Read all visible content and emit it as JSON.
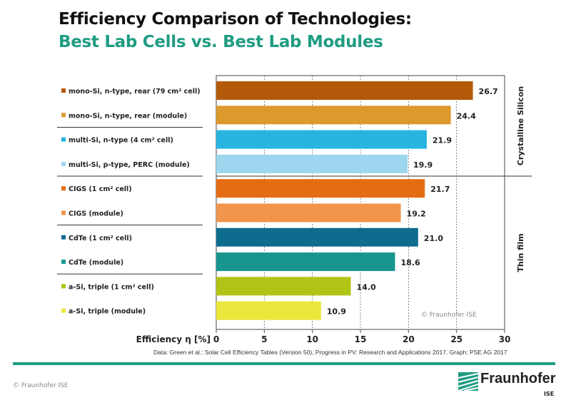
{
  "title": {
    "line1": "Efficiency Comparison of Technologies:",
    "line2": "Best Lab Cells vs. Best Lab Modules"
  },
  "chart_data": {
    "type": "bar",
    "orientation": "horizontal",
    "categories": [
      "mono-Si, n-type, rear (79 cm² cell)",
      "mono-Si, n-type, rear (module)",
      "multi-Si, n-type (4 cm² cell)",
      "multi-Si, p-type, PERC (module)",
      "CIGS (1 cm² cell)",
      "CIGS (module)",
      "CdTe (1 cm² cell)",
      "CdTe (module)",
      "a-Si, triple (1 cm² cell)",
      "a-Si, triple (module)"
    ],
    "values": [
      26.7,
      24.4,
      21.9,
      19.9,
      21.7,
      19.2,
      21.0,
      18.6,
      14.0,
      10.9
    ],
    "labels": [
      "26.7",
      "24.4",
      "21.9",
      "19.9",
      "21.7",
      "19.2",
      "21.0",
      "18.6",
      "14.0",
      "10.9"
    ],
    "colors": [
      "#b35a0a",
      "#dc9a2c",
      "#27b5e0",
      "#9dd6ee",
      "#e46c12",
      "#f1954c",
      "#0e6d8f",
      "#17958e",
      "#b0c416",
      "#ebe73c"
    ],
    "xlabel": "Efficiency η [%]",
    "xlim": [
      0,
      30
    ],
    "xticks": [
      "0",
      "5",
      "10",
      "15",
      "20",
      "25",
      "30"
    ],
    "grid": "vertical dashed",
    "groups": [
      {
        "name": "Crystalline Silicon"
      },
      {
        "name": "Thin film"
      }
    ],
    "watermark": "© Fraunhofer ISE"
  },
  "source": "Data: Green et al.: Solar Cell Efficiency Tables (Version 50), Progress in PV: Research and Applications 2017. Graph: PSE AG 2017",
  "footer": {
    "copyright": "© Fraunhofer ISE",
    "logo": "Fraunhofer",
    "logo_sub": "ISE",
    "accent": "#1f9c82"
  }
}
